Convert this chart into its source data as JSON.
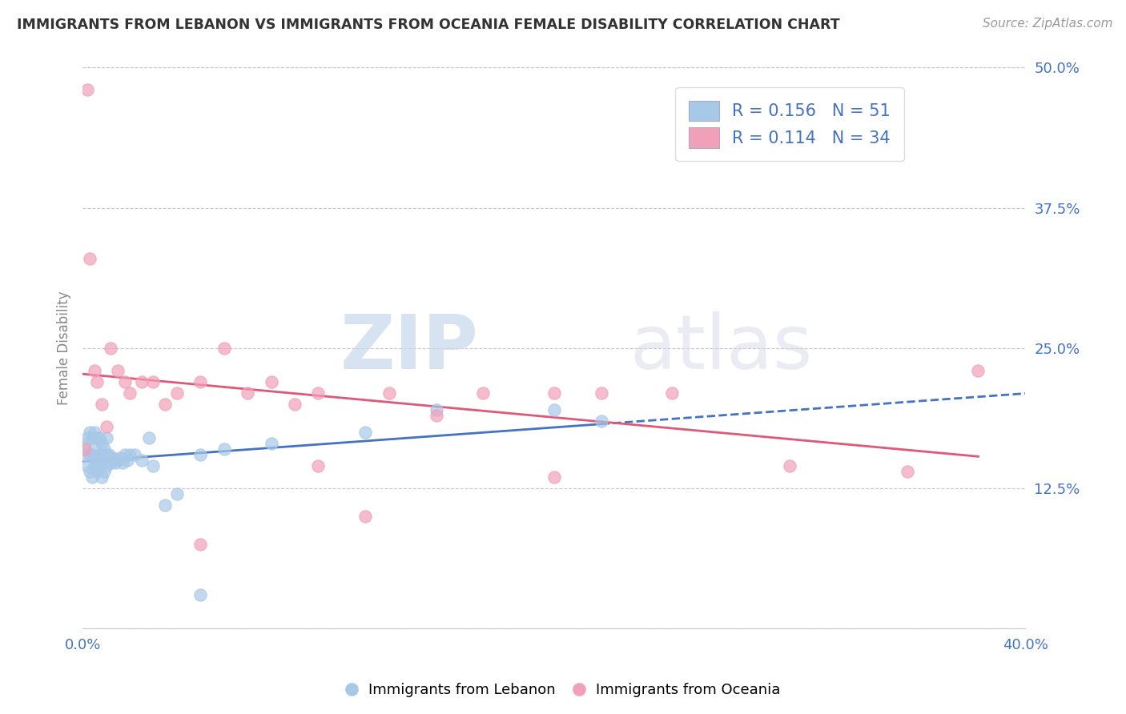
{
  "title": "IMMIGRANTS FROM LEBANON VS IMMIGRANTS FROM OCEANIA FEMALE DISABILITY CORRELATION CHART",
  "source": "Source: ZipAtlas.com",
  "ylabel": "Female Disability",
  "xlim": [
    0.0,
    0.4
  ],
  "ylim": [
    0.0,
    0.5
  ],
  "xticks": [
    0.0,
    0.05,
    0.1,
    0.15,
    0.2,
    0.25,
    0.3,
    0.35,
    0.4
  ],
  "yticks": [
    0.0,
    0.125,
    0.25,
    0.375,
    0.5
  ],
  "yticklabels_right": [
    "",
    "12.5%",
    "25.0%",
    "37.5%",
    "50.0%"
  ],
  "color_blue": "#A8C8E8",
  "color_pink": "#F0A0B8",
  "color_blue_line": "#4472C4",
  "color_pink_line": "#E05878",
  "color_label": "#4472C4",
  "background": "#FFFFFF",
  "lebanon_x": [
    0.001,
    0.001,
    0.002,
    0.002,
    0.003,
    0.003,
    0.003,
    0.004,
    0.004,
    0.004,
    0.005,
    0.005,
    0.005,
    0.006,
    0.006,
    0.006,
    0.007,
    0.007,
    0.007,
    0.008,
    0.008,
    0.008,
    0.009,
    0.009,
    0.01,
    0.01,
    0.01,
    0.011,
    0.012,
    0.013,
    0.014,
    0.015,
    0.016,
    0.017,
    0.018,
    0.019,
    0.02,
    0.022,
    0.025,
    0.028,
    0.03,
    0.035,
    0.04,
    0.05,
    0.06,
    0.08,
    0.12,
    0.15,
    0.2,
    0.22,
    0.05
  ],
  "lebanon_y": [
    0.155,
    0.165,
    0.145,
    0.17,
    0.14,
    0.155,
    0.175,
    0.135,
    0.155,
    0.17,
    0.145,
    0.16,
    0.175,
    0.14,
    0.15,
    0.17,
    0.145,
    0.155,
    0.17,
    0.135,
    0.15,
    0.165,
    0.14,
    0.16,
    0.145,
    0.155,
    0.17,
    0.155,
    0.148,
    0.152,
    0.148,
    0.15,
    0.152,
    0.148,
    0.155,
    0.15,
    0.155,
    0.155,
    0.15,
    0.17,
    0.145,
    0.11,
    0.12,
    0.155,
    0.16,
    0.165,
    0.175,
    0.195,
    0.195,
    0.185,
    0.03
  ],
  "oceania_x": [
    0.001,
    0.002,
    0.003,
    0.005,
    0.006,
    0.008,
    0.01,
    0.012,
    0.015,
    0.018,
    0.02,
    0.025,
    0.03,
    0.035,
    0.04,
    0.05,
    0.06,
    0.07,
    0.08,
    0.09,
    0.1,
    0.12,
    0.13,
    0.15,
    0.17,
    0.2,
    0.22,
    0.25,
    0.3,
    0.35,
    0.38,
    0.2,
    0.1,
    0.05
  ],
  "oceania_y": [
    0.16,
    0.48,
    0.33,
    0.23,
    0.22,
    0.2,
    0.18,
    0.25,
    0.23,
    0.22,
    0.21,
    0.22,
    0.22,
    0.2,
    0.21,
    0.22,
    0.25,
    0.21,
    0.22,
    0.2,
    0.21,
    0.1,
    0.21,
    0.19,
    0.21,
    0.21,
    0.21,
    0.21,
    0.145,
    0.14,
    0.23,
    0.135,
    0.145,
    0.075
  ]
}
